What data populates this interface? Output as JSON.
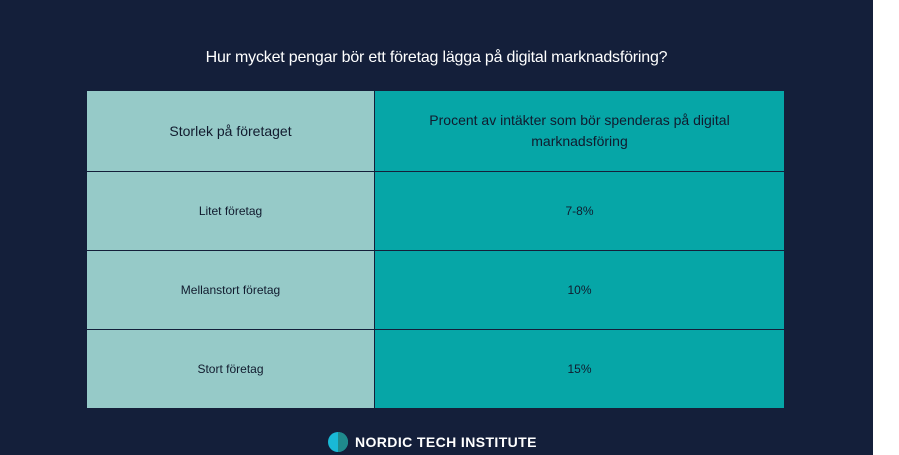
{
  "title": "Hur mycket pengar bör ett företag lägga på digital marknadsföring?",
  "table": {
    "headers": [
      "Storlek på företaget",
      "Procent av intäkter som bör spenderas på digital marknadsföring"
    ],
    "rows": [
      {
        "size": "Litet företag",
        "percent": "7-8%"
      },
      {
        "size": "Mellanstort företag",
        "percent": "10%"
      },
      {
        "size": "Stort företag",
        "percent": "15%"
      }
    ]
  },
  "logo": {
    "text": "NORDIC TECH INSTITUTE",
    "icon": "half-circle-logo-icon"
  },
  "colors": {
    "background": "#141f3a",
    "left_column": "#96cac8",
    "right_column": "#06a6a7",
    "logo_cyan": "#19b9d6"
  }
}
